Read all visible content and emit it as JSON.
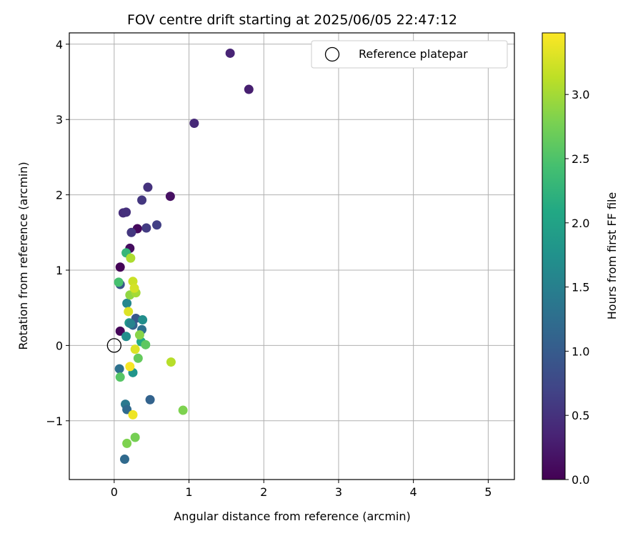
{
  "chart_data": {
    "type": "scatter",
    "title": "FOV centre drift starting at 2025/06/05 22:47:12",
    "xlabel": "Angular distance from reference (arcmin)",
    "ylabel": "Rotation from reference (arcmin)",
    "xlim": [
      -0.6,
      5.35
    ],
    "ylim": [
      -1.78,
      4.15
    ],
    "x_ticks": [
      0,
      1,
      2,
      3,
      4,
      5
    ],
    "y_ticks": [
      -1,
      0,
      1,
      2,
      3,
      4
    ],
    "x_tick_labels": [
      "0",
      "1",
      "2",
      "3",
      "4",
      "5"
    ],
    "y_tick_labels": [
      "−1",
      "0",
      "1",
      "2",
      "3",
      "4"
    ],
    "grid": true,
    "legend": {
      "position": "top-right",
      "entries": [
        "Reference platepar"
      ]
    },
    "reference_point": {
      "x": 0,
      "y": 0
    },
    "colorbar": {
      "label": "Hours from first FF file",
      "colormap": "viridis",
      "range": [
        0,
        3.48
      ],
      "ticks": [
        0.0,
        0.5,
        1.0,
        1.5,
        2.0,
        2.5,
        3.0
      ],
      "tick_labels": [
        "0.0",
        "0.5",
        "1.0",
        "1.5",
        "2.0",
        "2.5",
        "3.0"
      ]
    },
    "series": [
      {
        "points": [
          {
            "x": 0.08,
            "y": 1.04,
            "c": 0.02
          },
          {
            "x": 0.08,
            "y": 0.19,
            "c": 0.05
          },
          {
            "x": 0.31,
            "y": 1.55,
            "c": 0.08
          },
          {
            "x": 0.21,
            "y": 1.29,
            "c": 0.12
          },
          {
            "x": 0.75,
            "y": 1.98,
            "c": 0.15
          },
          {
            "x": 1.8,
            "y": 3.4,
            "c": 0.3
          },
          {
            "x": 1.55,
            "y": 3.88,
            "c": 0.35
          },
          {
            "x": 1.07,
            "y": 2.95,
            "c": 0.4
          },
          {
            "x": 0.45,
            "y": 2.1,
            "c": 0.5
          },
          {
            "x": 0.12,
            "y": 1.76,
            "c": 0.45
          },
          {
            "x": 0.16,
            "y": 1.77,
            "c": 0.48
          },
          {
            "x": 0.23,
            "y": 1.5,
            "c": 0.55
          },
          {
            "x": 0.37,
            "y": 1.93,
            "c": 0.55
          },
          {
            "x": 0.43,
            "y": 1.56,
            "c": 0.6
          },
          {
            "x": 0.57,
            "y": 1.6,
            "c": 0.65
          },
          {
            "x": 0.08,
            "y": 0.81,
            "c": 0.9
          },
          {
            "x": 0.48,
            "y": -0.72,
            "c": 1.1
          },
          {
            "x": 0.14,
            "y": -1.51,
            "c": 1.2
          },
          {
            "x": 0.07,
            "y": -0.31,
            "c": 1.3
          },
          {
            "x": 0.15,
            "y": -0.78,
            "c": 1.4
          },
          {
            "x": 0.17,
            "y": -0.85,
            "c": 1.2
          },
          {
            "x": 0.25,
            "y": 0.27,
            "c": 1.1
          },
          {
            "x": 0.29,
            "y": 0.36,
            "c": 0.95
          },
          {
            "x": 0.37,
            "y": 0.21,
            "c": 1.3
          },
          {
            "x": 0.17,
            "y": 0.56,
            "c": 1.6
          },
          {
            "x": 0.38,
            "y": 0.34,
            "c": 1.7
          },
          {
            "x": 0.2,
            "y": 0.3,
            "c": 1.9
          },
          {
            "x": 0.16,
            "y": 0.12,
            "c": 1.7
          },
          {
            "x": 0.25,
            "y": -0.36,
            "c": 1.8
          },
          {
            "x": 0.36,
            "y": 0.05,
            "c": 2.1
          },
          {
            "x": 0.22,
            "y": 0.29,
            "c": 1.55
          },
          {
            "x": 0.16,
            "y": 1.23,
            "c": 2.3
          },
          {
            "x": 0.06,
            "y": 0.84,
            "c": 2.45
          },
          {
            "x": 0.08,
            "y": -0.42,
            "c": 2.55
          },
          {
            "x": 0.32,
            "y": -0.17,
            "c": 2.65
          },
          {
            "x": 0.42,
            "y": 0.01,
            "c": 2.6
          },
          {
            "x": 0.28,
            "y": -1.22,
            "c": 2.75
          },
          {
            "x": 0.17,
            "y": -1.3,
            "c": 2.8
          },
          {
            "x": 0.92,
            "y": -0.86,
            "c": 2.8
          },
          {
            "x": 0.34,
            "y": 0.14,
            "c": 2.85
          },
          {
            "x": 0.21,
            "y": 0.67,
            "c": 2.9
          },
          {
            "x": 0.29,
            "y": 0.7,
            "c": 3.0
          },
          {
            "x": 0.22,
            "y": 1.16,
            "c": 3.05
          },
          {
            "x": 0.76,
            "y": -0.22,
            "c": 3.1
          },
          {
            "x": 0.25,
            "y": 0.85,
            "c": 3.2
          },
          {
            "x": 0.27,
            "y": 0.76,
            "c": 3.25
          },
          {
            "x": 0.19,
            "y": 0.45,
            "c": 3.3
          },
          {
            "x": 0.28,
            "y": -0.05,
            "c": 3.3
          },
          {
            "x": 0.21,
            "y": -0.28,
            "c": 3.45
          },
          {
            "x": 0.25,
            "y": -0.92,
            "c": 3.4
          }
        ]
      }
    ]
  }
}
